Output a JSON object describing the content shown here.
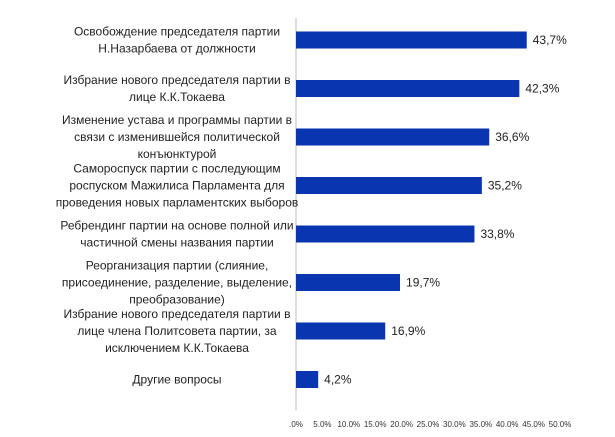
{
  "chart_data": {
    "type": "bar",
    "orientation": "horizontal",
    "categories": [
      [
        "Освобождение председателя партии",
        "Н.Назарбаева от должности"
      ],
      [
        "Избрание нового председателя партии в",
        "лице К.К.Токаева"
      ],
      [
        "Изменение устава и программы партии в",
        "связи с изменившейся политической",
        "конъюнктурой"
      ],
      [
        "Самороспуск партии с последующим",
        "роспуском Мажилиса Парламента для",
        "проведения новых парламентских выборов"
      ],
      [
        "Ребрендинг партии на основе полной или",
        "частичной смены названия партии"
      ],
      [
        "Реорганизация партии (слияние,",
        "присоединение, разделение, выделение,",
        "преобразование)"
      ],
      [
        "Избрание нового председателя партии в",
        "лице члена Политсовета партии, за",
        "исключением К.К.Токаева"
      ],
      [
        "Другие вопросы"
      ]
    ],
    "values": [
      43.7,
      42.3,
      36.6,
      35.2,
      33.8,
      19.7,
      16.9,
      4.2
    ],
    "value_labels": [
      "43,7%",
      "42,3%",
      "36,6%",
      "35,2%",
      "33,8%",
      "19,7%",
      "16,9%",
      "4,2%"
    ],
    "x_ticks": [
      ".0%",
      "5.0%",
      "10.0%",
      "15.0%",
      "20.0%",
      "25.0%",
      "30.0%",
      "35.0%",
      "40.0%",
      "45.0%",
      "50.0%"
    ],
    "xlim": [
      0,
      50
    ],
    "title": "",
    "xlabel": "",
    "ylabel": "",
    "grid": false,
    "legend": "none",
    "bar_color": "#0a35b0"
  }
}
